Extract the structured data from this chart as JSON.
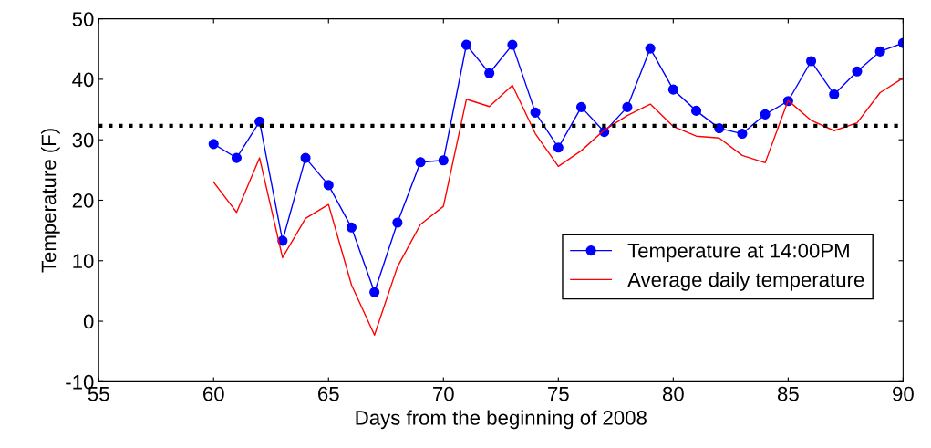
{
  "chart_data": {
    "type": "line",
    "xlabel": "Days from the beginning of 2008",
    "ylabel": "Temperature (F)",
    "x": [
      60,
      61,
      62,
      63,
      64,
      65,
      66,
      67,
      68,
      69,
      70,
      71,
      72,
      73,
      74,
      75,
      76,
      77,
      78,
      79,
      80,
      81,
      82,
      83,
      84,
      85,
      86,
      87,
      88,
      89,
      90
    ],
    "series": [
      {
        "name": "Temperature at 14:00PM",
        "color": "#0000ff",
        "marker": "circle",
        "values": [
          29.3,
          27,
          33,
          13.3,
          27,
          22.5,
          15.5,
          4.8,
          16.3,
          26.3,
          26.6,
          45.7,
          41,
          45.7,
          34.5,
          28.7,
          35.4,
          31.3,
          35.4,
          45.1,
          38.3,
          34.8,
          31.9,
          31,
          34.2,
          36.4,
          43,
          37.5,
          41.3,
          44.6,
          46
        ]
      },
      {
        "name": "Average daily temperature",
        "color": "#ff0000",
        "marker": "none",
        "values": [
          23,
          18,
          27,
          10.5,
          17,
          19.3,
          6,
          -2.3,
          9,
          16,
          19,
          36.7,
          35.5,
          39,
          31,
          25.6,
          28.2,
          31.6,
          34,
          35.9,
          32.2,
          30.6,
          30.3,
          27.4,
          26.2,
          36.5,
          33.2,
          31.5,
          32.8,
          37.8,
          40.2
        ]
      }
    ],
    "ref_lines": [
      {
        "axis": "y",
        "value": 32.3,
        "color": "#000000",
        "line_style": "dotted"
      }
    ],
    "xlim": [
      55,
      90
    ],
    "xticks": [
      55,
      60,
      65,
      70,
      75,
      80,
      85,
      90
    ],
    "ylim": [
      -10,
      50
    ],
    "yticks": [
      -10,
      0,
      10,
      20,
      30,
      40,
      50
    ],
    "grid": false,
    "legend": "bottom right"
  }
}
